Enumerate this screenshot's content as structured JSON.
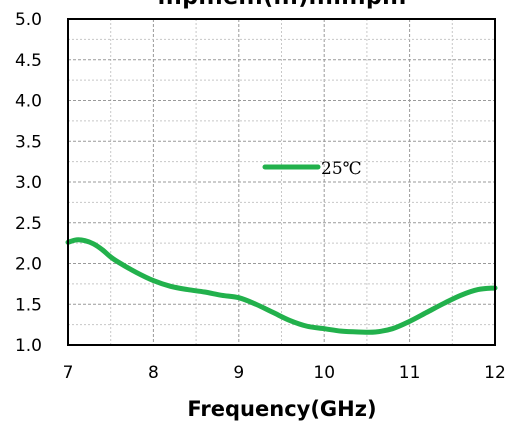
{
  "chart_data": {
    "type": "line",
    "title_partial": "...p...e...(...)...l...p...",
    "xlabel": "Frequency(GHz)",
    "ylabel": "",
    "xlim": [
      7,
      12
    ],
    "ylim": [
      1.0,
      5.0
    ],
    "x_ticks": [
      "7",
      "8",
      "9",
      "10",
      "11",
      "12"
    ],
    "y_ticks": [
      "1.0",
      "1.5",
      "2.0",
      "2.5",
      "3.0",
      "3.5",
      "4.0",
      "4.5",
      "5.0"
    ],
    "grid": true,
    "legend_position": "center",
    "series": [
      {
        "name": "25℃",
        "color": "#22b14c",
        "x": [
          7.0,
          7.1,
          7.2,
          7.3,
          7.4,
          7.5,
          7.6,
          7.8,
          8.0,
          8.2,
          8.4,
          8.6,
          8.8,
          9.0,
          9.2,
          9.4,
          9.6,
          9.8,
          10.0,
          10.2,
          10.4,
          10.6,
          10.8,
          11.0,
          11.2,
          11.4,
          11.6,
          11.8,
          12.0
        ],
        "values": [
          2.26,
          2.29,
          2.28,
          2.24,
          2.17,
          2.08,
          2.01,
          1.89,
          1.79,
          1.72,
          1.68,
          1.65,
          1.61,
          1.58,
          1.5,
          1.4,
          1.3,
          1.23,
          1.2,
          1.17,
          1.16,
          1.16,
          1.2,
          1.29,
          1.4,
          1.51,
          1.61,
          1.68,
          1.7
        ]
      }
    ]
  }
}
